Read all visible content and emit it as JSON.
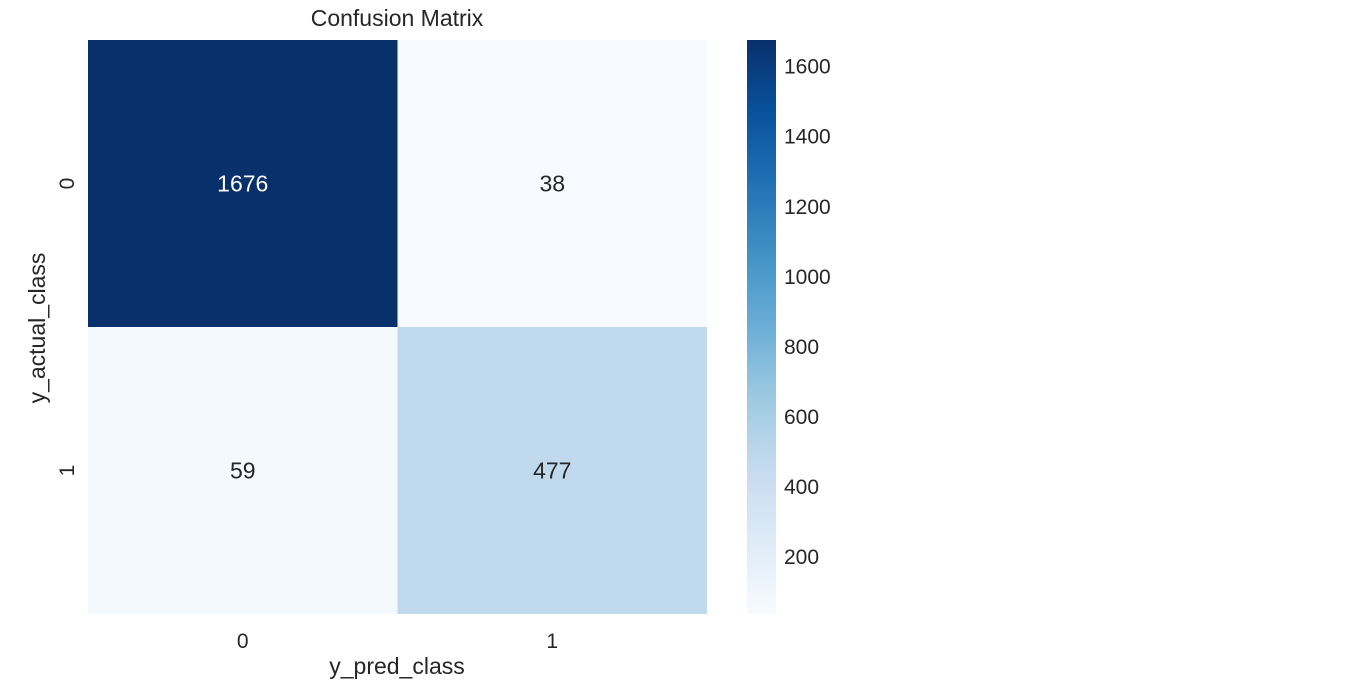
{
  "chart_data": {
    "type": "heatmap",
    "title": "Confusion Matrix",
    "xlabel": "y_pred_class",
    "ylabel": "y_actual_class",
    "x_categories": [
      "0",
      "1"
    ],
    "y_categories": [
      "0",
      "1"
    ],
    "values": [
      [
        1676,
        38
      ],
      [
        59,
        477
      ]
    ],
    "colormap": "Blues",
    "colorbar": {
      "range": [
        38,
        1676
      ],
      "ticks": [
        200,
        400,
        600,
        800,
        1000,
        1200,
        1400,
        1600
      ],
      "position": "right"
    },
    "grid": false
  },
  "colors": {
    "text_dark": "#262626",
    "text_light": "#ffffff",
    "cmap_stops": [
      "#f7fbff",
      "#deebf7",
      "#c6dbef",
      "#9ecae1",
      "#6baed6",
      "#4292c6",
      "#2171b5",
      "#08519c",
      "#08306b"
    ]
  }
}
